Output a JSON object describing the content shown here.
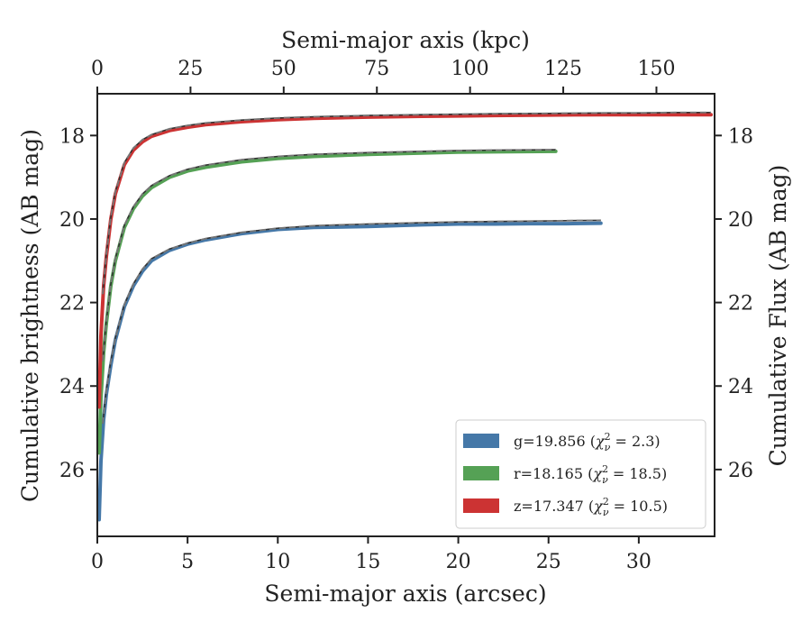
{
  "chart_data": {
    "type": "line",
    "x": {
      "label": "Semi-major axis (arcsec)",
      "lim": [
        0,
        34.2
      ],
      "ticks": [
        0,
        5,
        10,
        15,
        20,
        25,
        30
      ]
    },
    "x_top": {
      "label": "Semi-major axis (kpc)",
      "lim": [
        0,
        165.6
      ],
      "ticks": [
        0,
        25,
        50,
        75,
        100,
        125,
        150
      ]
    },
    "y": {
      "label": "Cumulative brightness (AB mag)",
      "lim": [
        27.6,
        17.0
      ],
      "inverted": true,
      "ticks": [
        18,
        20,
        22,
        24,
        26
      ]
    },
    "y_right": {
      "label": "Cumulative Flux (AB mag)",
      "ticks": [
        18,
        20,
        22,
        24,
        26
      ]
    },
    "grid": false,
    "legend": {
      "placement": "lower-right",
      "entries": [
        {
          "band": "g",
          "text_main": "g=19.856 (",
          "chi_value": " = 2.3)",
          "color": "#4578a8"
        },
        {
          "band": "r",
          "text_main": "r=18.165 (",
          "chi_value": " = 18.5)",
          "color": "#55a155"
        },
        {
          "band": "z",
          "text_main": "z=17.347 (",
          "chi_value": " = 10.5)",
          "color": "#cc3333"
        }
      ],
      "chi_symbol": "χ",
      "chi_sub": "ν",
      "chi_sup": "2"
    },
    "series": [
      {
        "band": "g",
        "color": "#4578a8",
        "x": [
          0.1,
          0.2,
          0.35,
          0.5,
          0.75,
          1,
          1.5,
          2,
          2.5,
          3,
          4,
          5,
          6,
          8,
          10,
          12,
          15,
          18,
          20,
          22,
          24,
          26,
          27.9
        ],
        "y": [
          27.2,
          25.8,
          24.8,
          24.2,
          23.5,
          22.9,
          22.1,
          21.6,
          21.25,
          21.0,
          20.75,
          20.6,
          20.5,
          20.35,
          20.25,
          20.2,
          20.18,
          20.14,
          20.12,
          20.12,
          20.11,
          20.11,
          20.1
        ],
        "model_x": [
          0.3,
          0.5,
          0.75,
          1,
          1.5,
          2,
          2.5,
          3,
          4,
          5,
          6,
          8,
          10,
          12,
          15,
          18,
          20,
          22,
          24,
          26,
          27.9
        ],
        "model_y": [
          24.9,
          24.1,
          23.4,
          22.85,
          22.05,
          21.55,
          21.2,
          20.95,
          20.72,
          20.58,
          20.47,
          20.32,
          20.22,
          20.16,
          20.12,
          20.09,
          20.07,
          20.06,
          20.05,
          20.04,
          20.03
        ]
      },
      {
        "band": "r",
        "color": "#55a155",
        "x": [
          0.1,
          0.2,
          0.35,
          0.5,
          0.75,
          1,
          1.5,
          2,
          2.5,
          3,
          4,
          5,
          6,
          8,
          10,
          12,
          15,
          18,
          20,
          22,
          25.4
        ],
        "y": [
          25.6,
          24.3,
          23.2,
          22.5,
          21.6,
          21.0,
          20.2,
          19.75,
          19.45,
          19.25,
          19.0,
          18.85,
          18.76,
          18.63,
          18.55,
          18.5,
          18.45,
          18.42,
          18.4,
          18.39,
          18.38
        ],
        "model_x": [
          0.3,
          0.5,
          0.75,
          1,
          1.5,
          2,
          2.5,
          3,
          4,
          5,
          6,
          8,
          10,
          12,
          15,
          18,
          20,
          22,
          25.4
        ],
        "model_y": [
          23.4,
          22.45,
          21.55,
          20.95,
          20.15,
          19.7,
          19.4,
          19.2,
          18.96,
          18.81,
          18.71,
          18.58,
          18.5,
          18.45,
          18.41,
          18.38,
          18.36,
          18.35,
          18.34
        ]
      },
      {
        "band": "z",
        "color": "#cc3333",
        "x": [
          0.1,
          0.2,
          0.35,
          0.5,
          0.75,
          1,
          1.5,
          2,
          2.5,
          3,
          4,
          5,
          6,
          8,
          10,
          12,
          15,
          18,
          20,
          22,
          25,
          28,
          30,
          32,
          34
        ],
        "y": [
          24.5,
          22.8,
          21.6,
          20.9,
          20.0,
          19.4,
          18.7,
          18.35,
          18.15,
          18.02,
          17.88,
          17.8,
          17.74,
          17.67,
          17.62,
          17.59,
          17.56,
          17.54,
          17.53,
          17.52,
          17.51,
          17.5,
          17.5,
          17.5,
          17.5
        ],
        "model_x": [
          0.3,
          0.5,
          0.75,
          1,
          1.5,
          2,
          2.5,
          3,
          4,
          5,
          6,
          8,
          10,
          12,
          15,
          18,
          20,
          22,
          25,
          28,
          30,
          32,
          34
        ],
        "model_y": [
          21.8,
          20.85,
          19.95,
          19.35,
          18.65,
          18.3,
          18.1,
          17.98,
          17.84,
          17.76,
          17.7,
          17.63,
          17.58,
          17.55,
          17.52,
          17.5,
          17.49,
          17.48,
          17.47,
          17.46,
          17.46,
          17.45,
          17.45
        ]
      }
    ]
  }
}
